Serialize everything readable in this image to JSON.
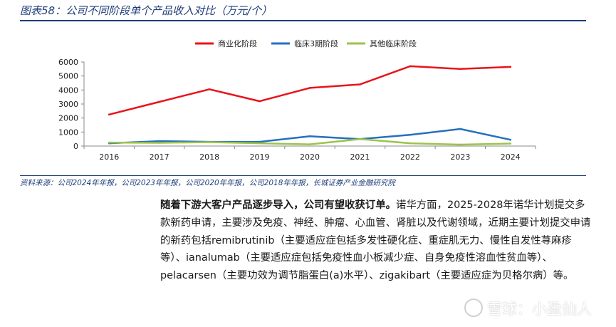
{
  "figure": {
    "title": "图表58：公司不同阶段单个产品收入对比（万元/个）",
    "source": "资料来源：公司2024年年报，公司2023年年报，公司2020年年报，公司2018年年报，长城证券产业金融研究院"
  },
  "chart_data": {
    "type": "line",
    "categories": [
      "2016",
      "2017",
      "2018",
      "2019",
      "2020",
      "2021",
      "2022",
      "2023",
      "2024"
    ],
    "series": [
      {
        "name": "商业化阶段",
        "color": "#e8141b",
        "values": [
          2250,
          3150,
          4050,
          3200,
          4150,
          4400,
          5700,
          5500,
          5650
        ]
      },
      {
        "name": "临床3期阶段",
        "color": "#2670c0",
        "values": [
          200,
          350,
          300,
          300,
          700,
          500,
          800,
          1220,
          450
        ]
      },
      {
        "name": "其他临床阶段",
        "color": "#9cc34a",
        "values": [
          250,
          230,
          280,
          200,
          120,
          500,
          200,
          100,
          180
        ]
      }
    ],
    "yticks": [
      "0",
      "1000",
      "2000",
      "3000",
      "4000",
      "5000",
      "6000"
    ],
    "ylim": [
      0,
      6000
    ],
    "legend_position": "top",
    "grid": false
  },
  "body": {
    "lead": "随着下游大客户产品逐步导入，公司有望收获订单。",
    "text": "诺华方面，2025-2028年诺华计划提交多款新药申请，主要涉及免疫、神经、肿瘤、心血管、肾脏以及代谢领域，近期主要计划提交申请的新药包括remibrutinib（主要适应症包括多发性硬化症、重症肌无力、慢性自发性荨麻疹等）、ianalumab（主要适应症包括免疫性血小板减少症、自身免疫性溶血性贫血等）、pelacarsen（主要功效为调节脂蛋白(a)水平）、zigakibart（主要适应症为贝格尔病）等。"
  },
  "watermark": {
    "icon": "snowball-logo-icon",
    "text": "雪球：小盈仙人"
  }
}
